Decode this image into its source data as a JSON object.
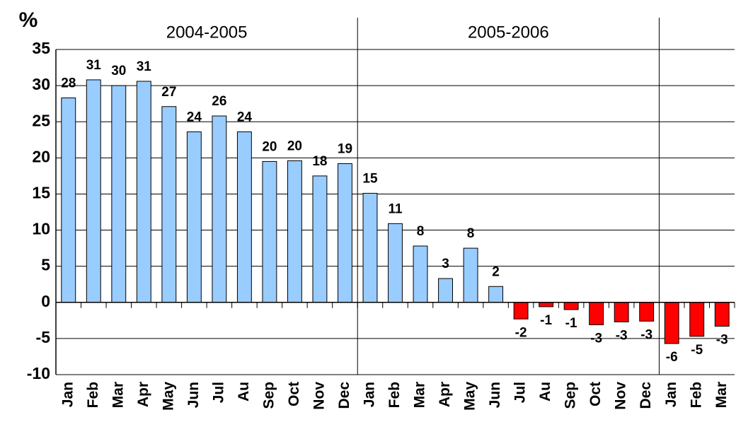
{
  "chart_data": {
    "type": "bar",
    "y_label": "%",
    "categories": [
      "Jan",
      "Feb",
      "Mar",
      "Apr",
      "May",
      "Jun",
      "Jul",
      "Au",
      "Sep",
      "Oct",
      "Nov",
      "Dec",
      "Jan",
      "Feb",
      "Mar",
      "Apr",
      "May",
      "Jun",
      "Jul",
      "Au",
      "Sep",
      "Oct",
      "Nov",
      "Dec",
      "Jan",
      "Feb",
      "Mar"
    ],
    "values": [
      28.3,
      30.8,
      30.0,
      30.6,
      27.1,
      23.6,
      25.8,
      23.6,
      19.5,
      19.6,
      17.5,
      19.2,
      15.1,
      10.9,
      7.8,
      3.3,
      7.5,
      2.2,
      -2.3,
      -0.6,
      -1.0,
      -3.1,
      -2.7,
      -2.6,
      -5.7,
      -4.7,
      -3.3
    ],
    "value_labels": [
      "28",
      "31",
      "30",
      "31",
      "27",
      "24",
      "26",
      "24",
      "20",
      "20",
      "18",
      "19",
      "15",
      "11",
      "8",
      "3",
      "8",
      "2",
      "-2",
      "-1",
      "-1",
      "-3",
      "-3",
      "-3",
      "-6",
      "-5",
      "-3"
    ],
    "groups": [
      {
        "label": "2004-2005",
        "span": 12
      },
      {
        "label": "2005-2006",
        "span": 12
      }
    ],
    "positive_color": "#99ccff",
    "negative_color": "#ff0000",
    "ylim": [
      -10,
      35
    ],
    "yticks": [
      -10,
      -5,
      0,
      5,
      10,
      15,
      20,
      25,
      30,
      35
    ],
    "grid": true
  }
}
